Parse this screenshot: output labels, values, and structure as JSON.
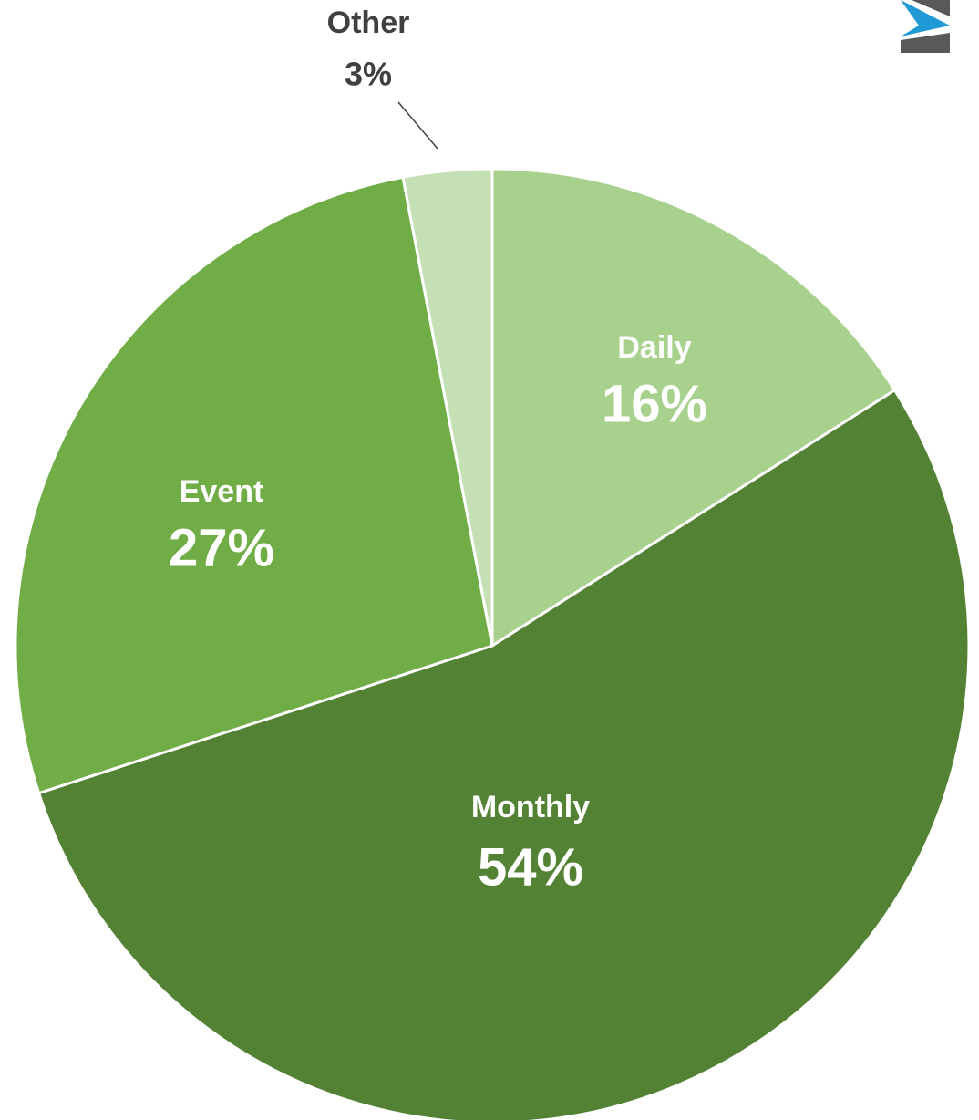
{
  "chart_data": {
    "type": "pie",
    "categories": [
      "Daily",
      "Monthly",
      "Event",
      "Other"
    ],
    "values": [
      16,
      54,
      27,
      3
    ],
    "value_labels": [
      "16%",
      "54%",
      "27%",
      "3%"
    ],
    "colors": [
      "#a9d18e",
      "#548235",
      "#70ad47",
      "#c5e0b4"
    ]
  }
}
